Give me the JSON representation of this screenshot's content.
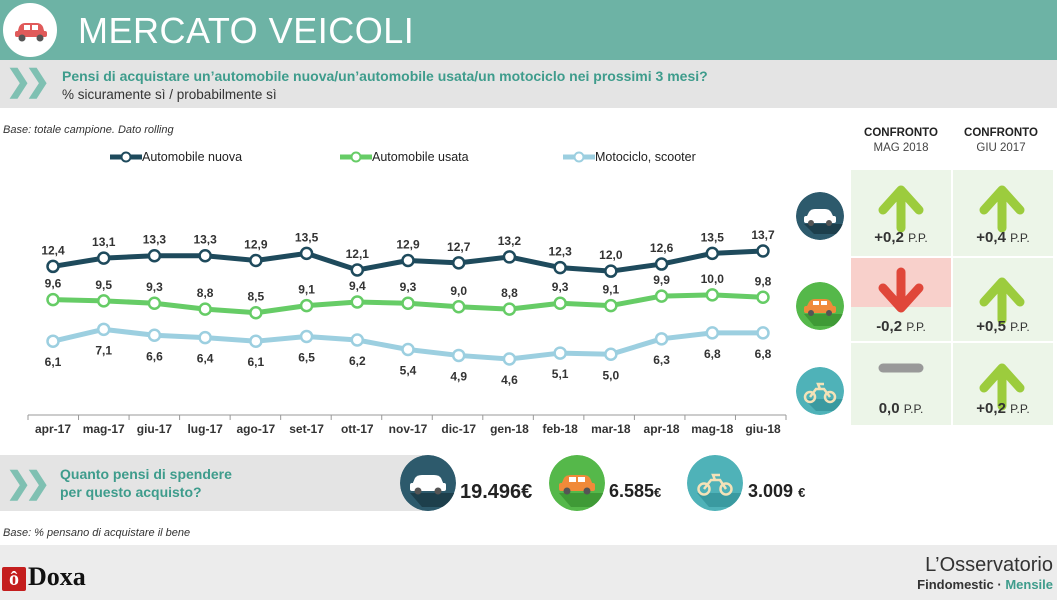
{
  "header": {
    "title": "MERCATO VEICOLI"
  },
  "question": {
    "text": "Pensi di acquistare un’automobile nuova/un’automobile usata/un motociclo nei prossimi 3 mesi?",
    "subtitle": "% sicuramente sì / probabilmente sì"
  },
  "base_top": "Base: totale campione. Dato rolling",
  "base_bottom": "Base: % pensano di acquistare il bene",
  "colors": {
    "teal": "#6db3a5",
    "series_new": "#1e4a5c",
    "series_used": "#66cc66",
    "series_moto": "#9ccfe0",
    "arrow_up": "#9ccc3d",
    "arrow_down": "#e0473a"
  },
  "chart_data": {
    "type": "line",
    "categories": [
      "apr-17",
      "mag-17",
      "giu-17",
      "lug-17",
      "ago-17",
      "set-17",
      "ott-17",
      "nov-17",
      "dic-17",
      "gen-18",
      "feb-18",
      "mar-18",
      "apr-18",
      "mag-18",
      "giu-18"
    ],
    "series": [
      {
        "name": "Automobile nuova",
        "color": "#1e4a5c",
        "values": [
          12.4,
          13.1,
          13.3,
          13.3,
          12.9,
          13.5,
          12.1,
          12.9,
          12.7,
          13.2,
          12.3,
          12.0,
          12.6,
          13.5,
          13.7
        ],
        "labels": [
          "12,4",
          "13,1",
          "13,3",
          "13,3",
          "12,9",
          "13,5",
          "12,1",
          "12,9",
          "12,7",
          "13,2",
          "12,3",
          "12,0",
          "12,6",
          "13,5",
          "13,7"
        ]
      },
      {
        "name": "Automobile usata",
        "color": "#66cc66",
        "values": [
          9.6,
          9.5,
          9.3,
          8.8,
          8.5,
          9.1,
          9.4,
          9.3,
          9.0,
          8.8,
          9.3,
          9.1,
          9.9,
          10.0,
          9.8
        ],
        "labels": [
          "9,6",
          "9,5",
          "9,3",
          "8,8",
          "8,5",
          "9,1",
          "9,4",
          "9,3",
          "9,0",
          "8,8",
          "9,3",
          "9,1",
          "9,9",
          "10,0",
          "9,8"
        ]
      },
      {
        "name": "Motociclo, scooter",
        "color": "#9ccfe0",
        "values": [
          6.1,
          7.1,
          6.6,
          6.4,
          6.1,
          6.5,
          6.2,
          5.4,
          4.9,
          4.6,
          5.1,
          5.0,
          6.3,
          6.8,
          6.8
        ],
        "labels": [
          "6,1",
          "7,1",
          "6,6",
          "6,4",
          "6,1",
          "6,5",
          "6,2",
          "5,4",
          "4,9",
          "4,6",
          "5,1",
          "5,0",
          "6,3",
          "6,8",
          "6,8"
        ]
      }
    ]
  },
  "comparison": {
    "headers": [
      {
        "title": "CONFRONTO",
        "sub": "MAG 2018"
      },
      {
        "title": "CONFRONTO",
        "sub": "GIU 2017"
      }
    ],
    "rows": [
      {
        "vehicle": "car-new-icon",
        "mag": {
          "dir": "up",
          "value": "+0,2",
          "unit": "P.P."
        },
        "giu": {
          "dir": "up",
          "value": "+0,4",
          "unit": "P.P."
        }
      },
      {
        "vehicle": "car-used-icon",
        "mag": {
          "dir": "down",
          "value": "-0,2",
          "unit": "P.P."
        },
        "giu": {
          "dir": "up",
          "value": "+0,5",
          "unit": "P.P."
        }
      },
      {
        "vehicle": "motorbike-icon",
        "mag": {
          "dir": "flat",
          "value": "0,0",
          "unit": "P.P."
        },
        "giu": {
          "dir": "up",
          "value": "+0,2",
          "unit": "P.P."
        }
      }
    ]
  },
  "spending": {
    "question_line1": "Quanto pensi di spendere",
    "question_line2": "per questo acquisto?",
    "items": [
      {
        "icon": "car-new-icon",
        "amount": "19.496",
        "currency": "€"
      },
      {
        "icon": "car-used-icon",
        "amount": "6.585",
        "currency": "€"
      },
      {
        "icon": "motorbike-icon",
        "amount": "3.009",
        "currency": "€"
      }
    ]
  },
  "footer": {
    "doxa": "Doxa",
    "osservatorio": "L’Osservatorio",
    "findomestic": "Findomestic",
    "separator": "·",
    "mensile": "Mensile"
  }
}
